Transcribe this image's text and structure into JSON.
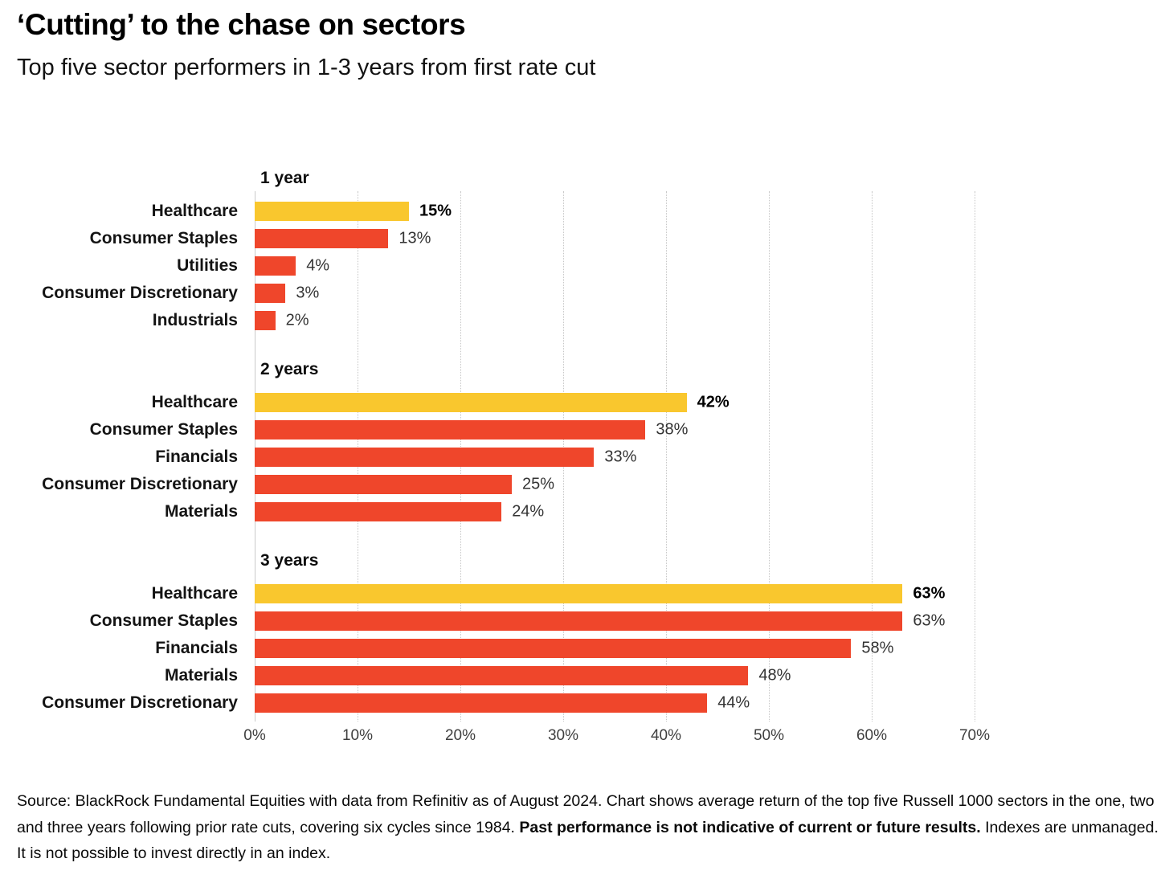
{
  "header": {
    "title": "‘Cutting’ to the chase on sectors",
    "subtitle": "Top five sector performers in 1-3 years from first rate cut"
  },
  "chart_data": {
    "type": "bar",
    "orientation": "horizontal",
    "value_unit": "%",
    "xlim": [
      0,
      70
    ],
    "x_tick_labels": [
      "0%",
      "10%",
      "20%",
      "30%",
      "40%",
      "50%",
      "60%",
      "70%"
    ],
    "grid": "vertical-dotted",
    "legend": "none",
    "colors": {
      "highlight_bar": "#F9C72E",
      "default_bar": "#EF462B"
    },
    "highlight_category": "Healthcare",
    "groups": [
      {
        "label": "1 year",
        "bars": [
          {
            "category": "Healthcare",
            "value": 15,
            "value_label": "15%",
            "highlight": true
          },
          {
            "category": "Consumer Staples",
            "value": 13,
            "value_label": "13%",
            "highlight": false
          },
          {
            "category": "Utilities",
            "value": 4,
            "value_label": "4%",
            "highlight": false
          },
          {
            "category": "Consumer Discretionary",
            "value": 3,
            "value_label": "3%",
            "highlight": false
          },
          {
            "category": "Industrials",
            "value": 2,
            "value_label": "2%",
            "highlight": false
          }
        ]
      },
      {
        "label": "2 years",
        "bars": [
          {
            "category": "Healthcare",
            "value": 42,
            "value_label": "42%",
            "highlight": true
          },
          {
            "category": "Consumer Staples",
            "value": 38,
            "value_label": "38%",
            "highlight": false
          },
          {
            "category": "Financials",
            "value": 33,
            "value_label": "33%",
            "highlight": false
          },
          {
            "category": "Consumer Discretionary",
            "value": 25,
            "value_label": "25%",
            "highlight": false
          },
          {
            "category": "Materials",
            "value": 24,
            "value_label": "24%",
            "highlight": false
          }
        ]
      },
      {
        "label": "3 years",
        "bars": [
          {
            "category": "Healthcare",
            "value": 63,
            "value_label": "63%",
            "highlight": true
          },
          {
            "category": "Consumer Staples",
            "value": 63,
            "value_label": "63%",
            "highlight": false
          },
          {
            "category": "Financials",
            "value": 58,
            "value_label": "58%",
            "highlight": false
          },
          {
            "category": "Materials",
            "value": 48,
            "value_label": "48%",
            "highlight": false
          },
          {
            "category": "Consumer Discretionary",
            "value": 44,
            "value_label": "44%",
            "highlight": false
          }
        ]
      }
    ]
  },
  "footer": {
    "source_prefix": "Source: BlackRock Fundamental Equities with data from Refinitiv as of August 2024. Chart shows average return of the top five Russell 1000 sectors in the one, two and three years following prior rate cuts, covering six cycles since 1984. ",
    "source_bold": "Past performance is not indicative of current or future results.",
    "source_suffix": " Indexes are unmanaged. It is not possible to invest directly in an index."
  }
}
